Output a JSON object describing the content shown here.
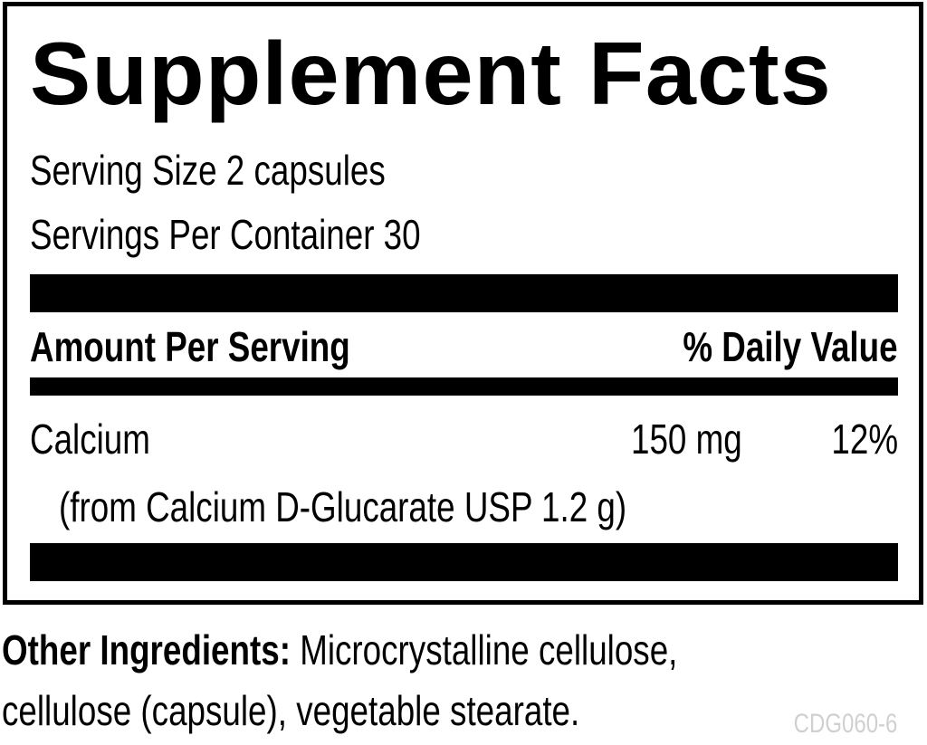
{
  "title": "Supplement Facts",
  "serving_size": "Serving Size 2 capsules",
  "servings_per_container": "Servings Per Container 30",
  "header": {
    "amount_label": "Amount Per Serving",
    "dv_label": "% Daily Value"
  },
  "nutrients": [
    {
      "name": "Calcium",
      "amount": "150 mg",
      "dv": "12%",
      "source": "(from Calcium D-Glucarate USP 1.2 g)"
    }
  ],
  "other_ingredients": {
    "label": "Other Ingredients:",
    "line1": " Microcrystalline cellulose,",
    "line2": "cellulose (capsule), vegetable stearate."
  },
  "product_code": "CDG060-6",
  "colors": {
    "text": "#000000",
    "code": "#d0d0d0"
  }
}
